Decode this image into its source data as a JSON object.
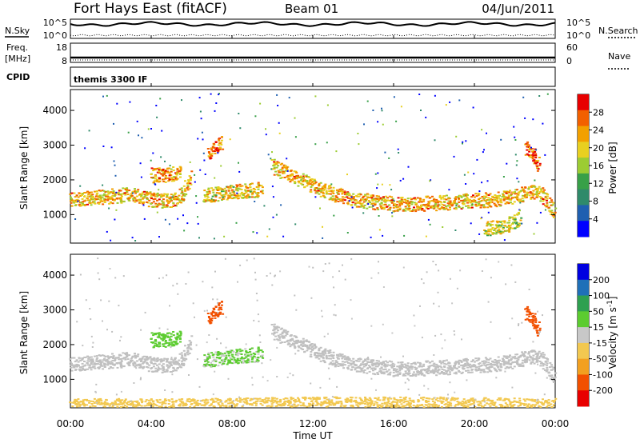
{
  "header": {
    "station": "Fort Hays East (fitACF)",
    "beam": "Beam 01",
    "date": "04/Jun/2011"
  },
  "left_labels": {
    "nsky": "N.Sky",
    "freq": "Freq.",
    "mhz": "[MHz]",
    "cpid": "CPID"
  },
  "right_labels": {
    "nsearch": "N.Search",
    "nave": "Nave"
  },
  "cpid_text": "themis 3300 IF",
  "noise_panel": {
    "left_ticks": [
      "10^5",
      "10^0"
    ],
    "right_ticks": [
      "10^5",
      "10^0"
    ]
  },
  "freq_panel": {
    "left_ticks": [
      "18",
      "8"
    ],
    "right_ticks": [
      "60",
      "0"
    ]
  },
  "x_axis": {
    "label": "Time UT",
    "ticks": [
      "00:00",
      "04:00",
      "08:00",
      "12:00",
      "16:00",
      "20:00",
      "00:00"
    ]
  },
  "colors": {
    "power": [
      "#0000ff",
      "#1f5fb0",
      "#2f8a6a",
      "#38a048",
      "#9ccc33",
      "#e8d020",
      "#f2a000",
      "#f26000",
      "#e80000"
    ],
    "velocity": [
      "#e80000",
      "#f25000",
      "#f2a020",
      "#f2c850",
      "#c8c8c8",
      "#5ccc30",
      "#2ea050",
      "#1f70b8",
      "#0000e0"
    ],
    "ground": "#c0c0c0"
  },
  "chart_data": [
    {
      "type": "heatmap",
      "name": "power",
      "xlabel": "",
      "ylabel": "Slant Range [km]",
      "xlim": [
        0,
        24
      ],
      "ylim": [
        180,
        4600
      ],
      "y_ticks": [
        1000,
        2000,
        3000,
        4000
      ],
      "colorbar": {
        "label": "Power [dB]",
        "ticks": [
          "28",
          "24",
          "20",
          "16",
          "12",
          "8",
          "4"
        ],
        "range": [
          0,
          32
        ]
      },
      "features": [
        {
          "x": [
            0,
            1,
            2,
            3,
            4,
            5,
            5.6,
            6
          ],
          "y": [
            1450,
            1500,
            1550,
            1600,
            1450,
            1400,
            1650,
            2200
          ],
          "value": 22
        },
        {
          "x": [
            6.6,
            7.5,
            8.5,
            9.5
          ],
          "y": [
            1550,
            1650,
            1700,
            1750
          ],
          "value": 20
        },
        {
          "x": [
            10,
            11,
            12,
            13,
            14,
            15,
            16,
            17,
            18,
            19,
            20,
            21,
            22,
            22.8,
            23.3,
            24
          ],
          "y": [
            2400,
            2100,
            1850,
            1600,
            1450,
            1380,
            1320,
            1320,
            1350,
            1380,
            1420,
            1450,
            1550,
            1680,
            1600,
            1050
          ],
          "value": 22
        },
        {
          "x": [
            4,
            4.8,
            5.5
          ],
          "y": [
            2150,
            2150,
            2250
          ],
          "value": 24
        },
        {
          "x": [
            6.8,
            7.2,
            7.5
          ],
          "y": [
            2800,
            3000,
            3100
          ],
          "value": 26
        },
        {
          "x": [
            22.5,
            22.9,
            23.2
          ],
          "y": [
            2900,
            2700,
            2400
          ],
          "value": 26
        },
        {
          "x": [
            20.5,
            21.5,
            22.3
          ],
          "y": [
            600,
            700,
            900
          ],
          "value": 18
        }
      ]
    },
    {
      "type": "heatmap",
      "name": "velocity",
      "xlabel": "Time UT",
      "ylabel": "Slant Range [km]",
      "xlim": [
        0,
        24
      ],
      "ylim": [
        180,
        4600
      ],
      "y_ticks": [
        1000,
        2000,
        3000,
        4000
      ],
      "colorbar": {
        "label": "Velocity [m s^-1]",
        "ticks": [
          "200",
          "100",
          "50",
          "15",
          "-15",
          "-50",
          "-100",
          "-200"
        ],
        "range": [
          -250,
          250
        ]
      },
      "features": [
        {
          "x": [
            0,
            1,
            2,
            3,
            4,
            5,
            5.6,
            6
          ],
          "y": [
            1450,
            1500,
            1550,
            1600,
            1450,
            1400,
            1650,
            2200
          ],
          "value": 0
        },
        {
          "x": [
            6.6,
            7.5,
            8.5,
            9.5
          ],
          "y": [
            1550,
            1650,
            1700,
            1750
          ],
          "value": 30
        },
        {
          "x": [
            10,
            11,
            12,
            13,
            14,
            15,
            16,
            17,
            18,
            19,
            20,
            21,
            22,
            22.8,
            23.3,
            24
          ],
          "y": [
            2400,
            2100,
            1850,
            1600,
            1450,
            1380,
            1320,
            1320,
            1350,
            1380,
            1420,
            1450,
            1550,
            1680,
            1600,
            1050
          ],
          "value": 0
        },
        {
          "x": [
            4,
            4.8,
            5.5
          ],
          "y": [
            2150,
            2150,
            2250
          ],
          "value": 60
        },
        {
          "x": [
            6.8,
            7.2,
            7.5
          ],
          "y": [
            2800,
            3000,
            3100
          ],
          "value": -180
        },
        {
          "x": [
            22.5,
            22.9,
            23.2
          ],
          "y": [
            2900,
            2700,
            2400
          ],
          "value": -180
        },
        {
          "x": [
            0,
            6,
            12,
            18,
            24
          ],
          "y": [
            250,
            250,
            300,
            300,
            250
          ],
          "value": -60
        }
      ]
    }
  ]
}
